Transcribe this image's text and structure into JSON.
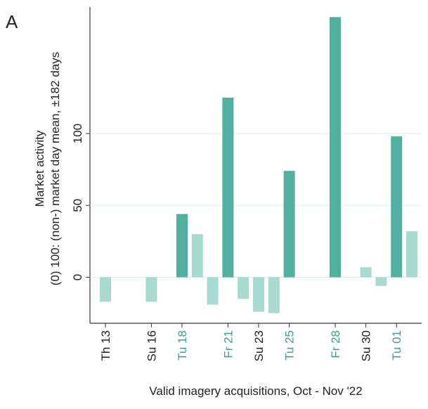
{
  "chart_data": {
    "type": "bar",
    "panel_label": "A",
    "ylabel": [
      "Market activity",
      "(0) 100: (non-) market day mean, ±182 days"
    ],
    "xlabel": "Valid imagery acquisitions, Oct - Nov '22",
    "categories": [
      "Th 13",
      null,
      null,
      "Su 16",
      null,
      "Tu 18",
      null,
      null,
      "Fr 21",
      null,
      "Su 23",
      null,
      "Tu 25",
      null,
      null,
      "Fr 28",
      null,
      "Su 30",
      null,
      "Tu 01",
      null
    ],
    "values": [
      -17,
      null,
      null,
      -17,
      null,
      44,
      30,
      -19,
      125,
      -15,
      -24,
      -25,
      74,
      null,
      null,
      181,
      null,
      7,
      -6,
      98,
      32
    ],
    "colors": [
      "#a8dad2",
      null,
      null,
      "#a8dad2",
      null,
      "#52b0a0",
      "#a8dad2",
      "#a8dad2",
      "#52b0a0",
      "#a8dad2",
      "#a8dad2",
      "#a8dad2",
      "#52b0a0",
      null,
      null,
      "#52b0a0",
      null,
      "#a8dad2",
      "#a8dad2",
      "#52b0a0",
      "#a8dad2"
    ],
    "label_colors": [
      "#222222",
      null,
      null,
      "#222222",
      null,
      "#3aa08f",
      null,
      null,
      "#3aa08f",
      null,
      "#222222",
      null,
      "#3aa08f",
      null,
      null,
      "#3aa08f",
      null,
      "#222222",
      null,
      "#3aa08f",
      null
    ],
    "ylim": [
      -32,
      188
    ],
    "yticks": [
      0,
      50,
      100
    ],
    "grid": true
  }
}
